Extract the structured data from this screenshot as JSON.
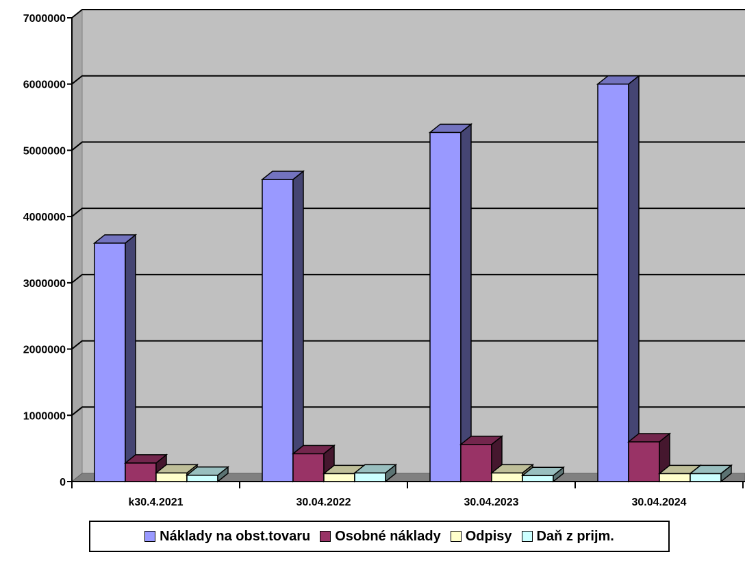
{
  "chart_data": {
    "type": "bar",
    "categories": [
      "k30.4.2021",
      "30.04.2022",
      "30.04.2023",
      "30.04.2024"
    ],
    "series": [
      {
        "name": "Náklady na obst.tovaru",
        "values": [
          3600000,
          4560000,
          5270000,
          6000000
        ],
        "color": "#9999ff"
      },
      {
        "name": "Osobné náklady",
        "values": [
          280000,
          420000,
          560000,
          600000
        ],
        "color": "#993366"
      },
      {
        "name": "Odpisy",
        "values": [
          130000,
          120000,
          130000,
          120000
        ],
        "color": "#ffffcc"
      },
      {
        "name": "Daň z prijm.",
        "values": [
          95000,
          130000,
          90000,
          120000
        ],
        "color": "#ccffff"
      }
    ],
    "yticks": [
      "0",
      "1000000",
      "2000000",
      "3000000",
      "4000000",
      "5000000",
      "6000000",
      "7000000"
    ],
    "ylim": [
      0,
      7000000
    ],
    "grid": true,
    "legend_position": "bottom",
    "plot_background": "#c0c0c0"
  }
}
